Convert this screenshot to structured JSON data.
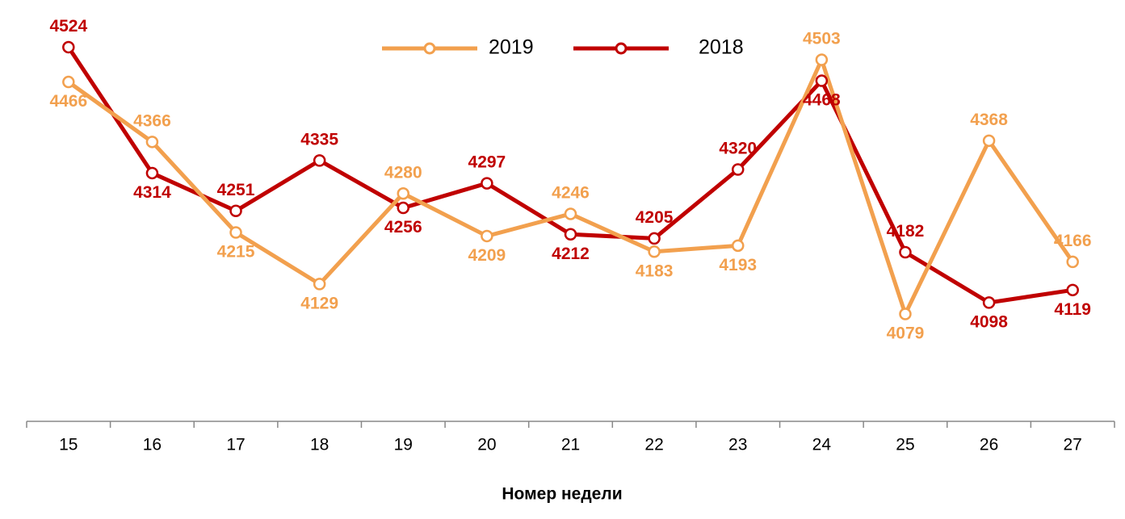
{
  "chart_data": {
    "type": "line",
    "x_label": "Номер недели",
    "categories": [
      "15",
      "16",
      "17",
      "18",
      "19",
      "20",
      "21",
      "22",
      "23",
      "24",
      "25",
      "26",
      "27"
    ],
    "series": [
      {
        "name": "2019",
        "color": "#f2a04e",
        "values": [
          4466,
          4366,
          4215,
          4129,
          4280,
          4209,
          4246,
          4183,
          4193,
          4503,
          4079,
          4368,
          4166
        ]
      },
      {
        "name": "2018",
        "color": "#c00000",
        "values": [
          4524,
          4314,
          4251,
          4335,
          4256,
          4297,
          4212,
          4205,
          4320,
          4468,
          4182,
          4098,
          4119
        ]
      }
    ],
    "ylim": [
      3900,
      4600
    ],
    "legend": "top"
  }
}
